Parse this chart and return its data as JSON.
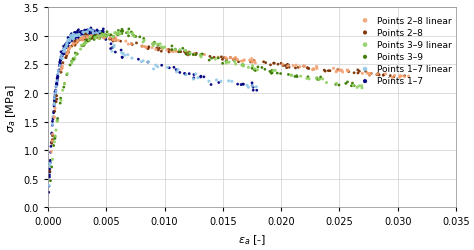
{
  "title": "",
  "xlabel": "$\\varepsilon_a$ [-]",
  "ylabel": "$\\sigma_a$ [MPa]",
  "xlim": [
    0.0,
    0.035
  ],
  "ylim": [
    0.0,
    3.5
  ],
  "xticks": [
    0.0,
    0.005,
    0.01,
    0.015,
    0.02,
    0.025,
    0.03,
    0.035
  ],
  "yticks": [
    0,
    0.5,
    1.0,
    1.5,
    2.0,
    2.5,
    3.0,
    3.5
  ],
  "series": {
    "points_28_linear": {
      "label": "Points 2–8 linear",
      "color": "#F4A070",
      "markersize": 2.2,
      "alpha": 0.9
    },
    "points_28": {
      "label": "Points 2–8",
      "color": "#7B3000",
      "markersize": 2.0,
      "alpha": 0.95
    },
    "points_39_linear": {
      "label": "Points 3–9 linear",
      "color": "#8FD060",
      "markersize": 2.2,
      "alpha": 0.9
    },
    "points_39": {
      "label": "Points 3–9",
      "color": "#3A7A00",
      "markersize": 2.0,
      "alpha": 0.95
    },
    "points_17_linear": {
      "label": "Points 1–7 linear",
      "color": "#90C8E8",
      "markersize": 2.2,
      "alpha": 0.9
    },
    "points_17": {
      "label": "Points 1–7",
      "color": "#000080",
      "markersize": 2.0,
      "alpha": 0.95
    }
  },
  "background_color": "#ffffff",
  "grid_color": "#d0d0d0",
  "legend_fontsize": 6.5,
  "axis_fontsize": 8,
  "tick_fontsize": 7
}
